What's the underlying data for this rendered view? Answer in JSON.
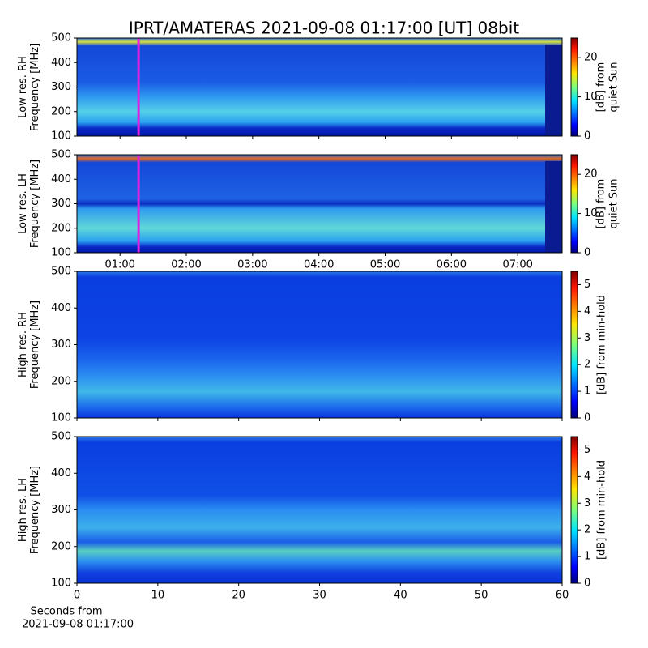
{
  "title": "IPRT/AMATERAS 2021-09-08 01:17:00 [UT]   08bit",
  "chart_data": [
    {
      "type": "heatmap",
      "colormap": "jet",
      "ylabel": [
        "Low res. RH",
        "Frequency [MHz]"
      ],
      "ylim": [
        100,
        500
      ],
      "yticks": [
        100,
        200,
        300,
        400,
        500
      ],
      "xlim": [
        0.35,
        7.67
      ],
      "vlines": [
        1.28
      ],
      "vline_color": "#e020e0",
      "colorbar": {
        "label": [
          "[dB] from",
          "quiet Sun"
        ],
        "lim": [
          0,
          25
        ],
        "ticks": [
          0,
          10,
          20
        ]
      }
    },
    {
      "type": "heatmap",
      "colormap": "jet",
      "ylabel": [
        "Low res. LH",
        "Frequency [MHz]"
      ],
      "ylim": [
        100,
        500
      ],
      "yticks": [
        100,
        200,
        300,
        400,
        500
      ],
      "xlim": [
        0.35,
        7.67
      ],
      "vlines": [
        1.28
      ],
      "vline_color": "#e020e0",
      "xticks": [
        {
          "value": 1,
          "label": "01:00"
        },
        {
          "value": 2,
          "label": "02:00"
        },
        {
          "value": 3,
          "label": "03:00"
        },
        {
          "value": 4,
          "label": "04:00"
        },
        {
          "value": 5,
          "label": "05:00"
        },
        {
          "value": 6,
          "label": "06:00"
        },
        {
          "value": 7,
          "label": "07:00"
        }
      ],
      "colorbar": {
        "label": [
          "[dB] from",
          "quiet Sun"
        ],
        "lim": [
          0,
          25
        ],
        "ticks": [
          0,
          10,
          20
        ]
      }
    },
    {
      "type": "heatmap",
      "colormap": "jet",
      "ylabel": [
        "High res. RH",
        "Frequency [MHz]"
      ],
      "ylim": [
        100,
        500
      ],
      "yticks": [
        100,
        200,
        300,
        400,
        500
      ],
      "xlim": [
        0,
        60
      ],
      "colorbar": {
        "label": [
          "[dB] from min-hold"
        ],
        "lim": [
          0,
          5.5
        ],
        "ticks": [
          0,
          1,
          2,
          3,
          4,
          5
        ]
      }
    },
    {
      "type": "heatmap",
      "colormap": "jet",
      "ylabel": [
        "High res. LH",
        "Frequency [MHz]"
      ],
      "ylim": [
        100,
        500
      ],
      "yticks": [
        100,
        200,
        300,
        400,
        500
      ],
      "xlim": [
        0,
        60
      ],
      "xticks": [
        0,
        10,
        20,
        30,
        40,
        50,
        60
      ],
      "xlabel": [
        "Seconds from",
        "2021-09-08 01:17:00"
      ],
      "colorbar": {
        "label": [
          "[dB] from min-hold"
        ],
        "lim": [
          0,
          5.5
        ],
        "ticks": [
          0,
          1,
          2,
          3,
          4,
          5
        ]
      }
    }
  ]
}
